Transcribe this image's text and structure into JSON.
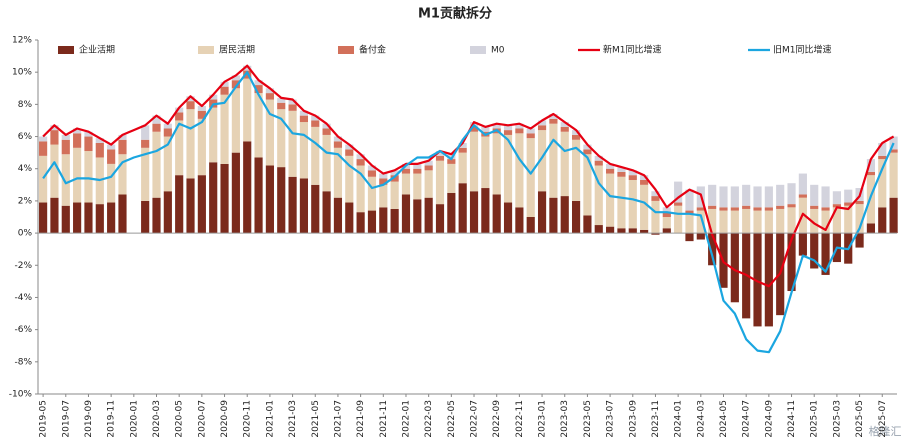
{
  "chart_data": {
    "type": "bar",
    "title": "M1贡献拆分",
    "categories": [
      "2019-05",
      null,
      "2019-07",
      null,
      "2019-09",
      null,
      "2019-11",
      null,
      "2020-01",
      null,
      "2020-03",
      null,
      "2020-05",
      null,
      "2020-07",
      null,
      "2020-09",
      null,
      "2020-11",
      null,
      "2021-01",
      null,
      "2021-03",
      null,
      "2021-05",
      null,
      "2021-07",
      null,
      "2021-09",
      null,
      "2021-11",
      null,
      "2022-01",
      null,
      "2022-03",
      null,
      "2022-05",
      null,
      "2022-07",
      null,
      "2022-09",
      null,
      "2022-11",
      null,
      "2023-01",
      null,
      "2023-03",
      null,
      "2023-05",
      null,
      "2023-07",
      null,
      "2023-09",
      null,
      "2023-11",
      null,
      "2024-01",
      null,
      "2024-03",
      null,
      "2024-05",
      null,
      "2024-07",
      null,
      "2024-09",
      null,
      "2024-11",
      null,
      "2025-01",
      null,
      "2025-03",
      null,
      "2025-05",
      null,
      "2025-07",
      null
    ],
    "series": [
      {
        "name": "企业活期",
        "color": "#7b2a1c",
        "kind": "bar",
        "values": [
          1.9,
          2.2,
          1.7,
          1.9,
          1.9,
          1.8,
          1.9,
          2.4,
          null,
          2.0,
          2.2,
          2.6,
          3.6,
          3.4,
          3.6,
          4.4,
          4.3,
          5.0,
          5.7,
          4.7,
          4.2,
          4.1,
          3.5,
          3.4,
          3.0,
          2.6,
          2.2,
          1.9,
          1.3,
          1.4,
          1.6,
          1.5,
          2.4,
          2.1,
          2.2,
          1.8,
          2.5,
          3.1,
          2.6,
          2.8,
          2.4,
          1.9,
          1.6,
          1.0,
          2.6,
          2.2,
          2.3,
          2.0,
          1.1,
          0.5,
          0.4,
          0.3,
          0.3,
          0.2,
          -0.1,
          0.3,
          0,
          -0.5,
          -0.4,
          -2.0,
          -3.4,
          -4.3,
          -5.3,
          -5.8,
          -5.8,
          -5.1,
          -3.6,
          -1.4,
          -2.2,
          -2.6,
          -1.8,
          -1.9,
          -0.9,
          0.6,
          1.6,
          2.2
        ]
      },
      {
        "name": "居民活期",
        "color": "#e6d2b5",
        "kind": "bar",
        "values": [
          2.9,
          3.3,
          3.2,
          3.4,
          3.2,
          2.9,
          2.4,
          2.5,
          null,
          3.3,
          4.1,
          3.4,
          3.4,
          4.3,
          3.5,
          3.4,
          4.3,
          4.0,
          3.9,
          4.0,
          4.1,
          3.6,
          4.1,
          3.5,
          3.6,
          3.5,
          3.1,
          2.9,
          2.9,
          2.1,
          1.4,
          1.7,
          1.3,
          1.6,
          1.7,
          2.7,
          1.8,
          1.9,
          3.7,
          3.2,
          3.8,
          4.2,
          4.6,
          4.9,
          3.8,
          4.6,
          4.0,
          3.8,
          3.8,
          3.7,
          3.3,
          3.2,
          3.0,
          2.8,
          2.0,
          0.7,
          1.7,
          1.2,
          1.4,
          1.5,
          1.4,
          1.4,
          1.5,
          1.4,
          1.4,
          1.5,
          1.6,
          2.2,
          1.5,
          1.4,
          1.6,
          1.7,
          1.8,
          3.0,
          3.0,
          2.8
        ]
      },
      {
        "name": "备付金",
        "color": "#d2705a",
        "kind": "bar",
        "values": [
          0.9,
          0.9,
          0.9,
          0.9,
          0.9,
          0.9,
          0.9,
          0.9,
          null,
          0.5,
          0.5,
          0.5,
          0.5,
          0.5,
          0.5,
          0.5,
          0.5,
          0.5,
          0.5,
          0.5,
          0.4,
          0.4,
          0.4,
          0.4,
          0.4,
          0.4,
          0.4,
          0.4,
          0.4,
          0.4,
          0.4,
          0.4,
          0.3,
          0.3,
          0.3,
          0.3,
          0.3,
          0.3,
          0.3,
          0.3,
          0.3,
          0.3,
          0.3,
          0.3,
          0.3,
          0.3,
          0.3,
          0.3,
          0.3,
          0.3,
          0.3,
          0.3,
          0.3,
          0.3,
          0.3,
          0.3,
          0.2,
          0.2,
          0.2,
          0.2,
          0.2,
          0.2,
          0.2,
          0.2,
          0.2,
          0.2,
          0.2,
          0.2,
          0.2,
          0.2,
          0.2,
          0.2,
          0.2,
          0.2,
          0.2,
          0.2
        ]
      },
      {
        "name": "M0",
        "color": "#d3d3dd",
        "kind": "bar",
        "values": [
          0.3,
          0.3,
          0.3,
          0.3,
          0.3,
          0.3,
          0.3,
          0.3,
          null,
          0.9,
          0.5,
          0.3,
          0.3,
          0.3,
          0.3,
          0.3,
          0.3,
          0.3,
          0.3,
          0.3,
          0.3,
          0.3,
          0.3,
          0.3,
          0.3,
          0.3,
          0.3,
          0.3,
          0.3,
          0.3,
          0.3,
          0.3,
          0.3,
          0.3,
          0.3,
          0.3,
          0.3,
          0.3,
          0.3,
          0.3,
          0.3,
          0.3,
          0.3,
          0.3,
          0.3,
          0.3,
          0.3,
          0.3,
          0.3,
          0.3,
          0.3,
          0.3,
          0.3,
          0.3,
          0.3,
          0.3,
          1.3,
          1.3,
          1.3,
          1.3,
          1.3,
          1.3,
          1.3,
          1.3,
          1.3,
          1.3,
          1.3,
          1.3,
          1.3,
          1.3,
          0.8,
          0.8,
          0.8,
          0.8,
          0.8,
          0.8
        ]
      },
      {
        "name": "新M1同比增速",
        "color": "#e60012",
        "kind": "line",
        "values": [
          6.0,
          6.7,
          6.1,
          6.5,
          6.3,
          5.9,
          5.5,
          6.1,
          6.4,
          6.7,
          7.3,
          6.8,
          7.8,
          8.5,
          7.9,
          8.6,
          9.4,
          9.8,
          10.4,
          9.5,
          9.0,
          8.4,
          8.3,
          7.6,
          7.3,
          6.8,
          6.0,
          5.5,
          4.9,
          4.2,
          3.7,
          3.9,
          4.3,
          4.3,
          4.5,
          5.1,
          4.9,
          5.6,
          6.9,
          6.6,
          6.8,
          6.7,
          6.8,
          6.5,
          7.0,
          7.4,
          6.9,
          6.4,
          5.5,
          4.8,
          4.3,
          4.1,
          3.9,
          3.6,
          2.7,
          1.6,
          2.2,
          2.7,
          2.4,
          -0.1,
          -1.8,
          -2.3,
          -2.6,
          -3.0,
          -3.3,
          -2.5,
          -0.4,
          1.2,
          0.6,
          0.2,
          1.6,
          1.5,
          2.3,
          4.6,
          5.6,
          6.0
        ]
      },
      {
        "name": "旧M1同比增速",
        "color": "#1ba6e0",
        "kind": "line",
        "values": [
          3.4,
          4.4,
          3.1,
          3.4,
          3.4,
          3.3,
          3.5,
          4.4,
          4.7,
          4.9,
          5.1,
          5.5,
          6.8,
          6.5,
          6.9,
          8.0,
          8.1,
          9.1,
          10.0,
          8.6,
          7.4,
          7.1,
          6.2,
          6.1,
          5.6,
          5.0,
          4.9,
          4.2,
          3.7,
          2.8,
          3.0,
          3.5,
          4.2,
          4.7,
          4.7,
          5.1,
          4.6,
          5.8,
          6.7,
          6.1,
          6.4,
          5.8,
          4.6,
          3.7,
          4.7,
          5.8,
          5.1,
          5.3,
          4.7,
          3.1,
          2.3,
          2.2,
          2.1,
          1.9,
          1.3,
          1.3,
          1.2,
          1.2,
          1.1,
          -1.4,
          -4.2,
          -5.0,
          -6.6,
          -7.3,
          -7.4,
          -6.1,
          -3.7,
          -1.4,
          -1.7,
          -2.4,
          -0.9,
          -1.0,
          0.3,
          2.3,
          4.0,
          5.6
        ]
      }
    ],
    "ylim": [
      -10,
      12
    ],
    "yticks": [
      {
        "value": -10,
        "label": "-10%"
      },
      {
        "value": -8,
        "label": "-8%"
      },
      {
        "value": -6,
        "label": "-6%"
      },
      {
        "value": -4,
        "label": "-4%"
      },
      {
        "value": -2,
        "label": "-2%"
      },
      {
        "value": 0,
        "label": "0%"
      },
      {
        "value": 2,
        "label": "2%"
      },
      {
        "value": 4,
        "label": "4%"
      },
      {
        "value": 6,
        "label": "6%"
      },
      {
        "value": 8,
        "label": "8%"
      },
      {
        "value": 10,
        "label": "10%"
      },
      {
        "value": 12,
        "label": "12%"
      }
    ],
    "grid": false,
    "legend": "top",
    "watermark": "格隆汇"
  }
}
